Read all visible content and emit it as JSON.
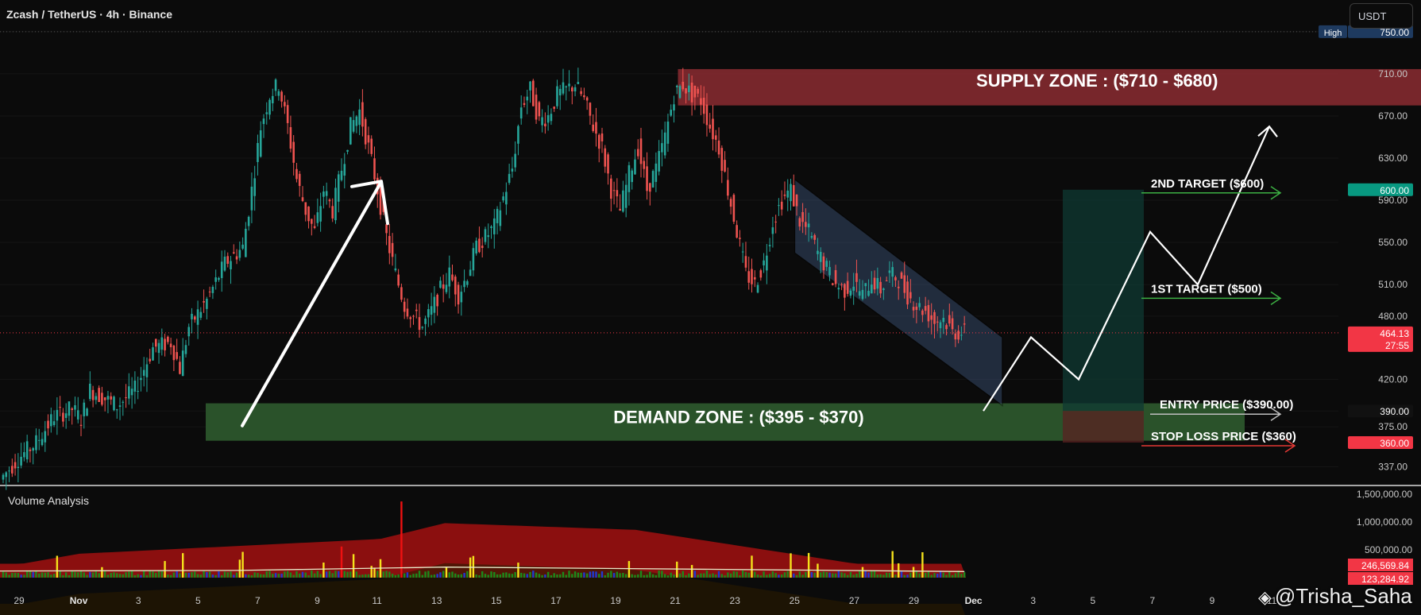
{
  "header": {
    "symbol_title": "Zcash / TetherUS · 4h · Binance",
    "currency_button": "USDT"
  },
  "volume_panel": {
    "label": "Volume Analysis",
    "axis_ticks": [
      "1,500,000.00",
      "1,000,000.00",
      "500,000.00"
    ],
    "badges": [
      "246,569.84",
      "123,284.92"
    ]
  },
  "watermark": {
    "text": "@Trisha_Saha",
    "icon": "binance-square-icon"
  },
  "colors": {
    "up": "#26a69a",
    "down": "#ef5350",
    "supply": "#8b2c31",
    "demand": "#2e5a2e",
    "target_green": "#3cb043",
    "stop_red": "#e53935",
    "price_badge_red": "#f23645",
    "target_badge": "#089981"
  },
  "chart_data": {
    "type": "candlestick",
    "title": "Zcash / TetherUS · 4h · Binance",
    "y_axis": {
      "ticks": [
        337,
        375,
        390,
        420,
        480,
        510,
        550,
        590,
        630,
        670,
        710,
        750
      ],
      "ylim": [
        320,
        765
      ]
    },
    "x_axis": {
      "tick_labels": [
        "29",
        "Nov",
        "3",
        "5",
        "7",
        "9",
        "11",
        "13",
        "15",
        "17",
        "19",
        "21",
        "23",
        "25",
        "27",
        "29",
        "Dec",
        "3",
        "5",
        "7",
        "9",
        "11"
      ]
    },
    "price_path": [
      [
        0,
        325
      ],
      [
        2,
        345
      ],
      [
        4,
        360
      ],
      [
        6,
        385
      ],
      [
        8,
        392
      ],
      [
        9,
        382
      ],
      [
        10,
        410
      ],
      [
        11,
        405
      ],
      [
        13,
        395
      ],
      [
        15,
        410
      ],
      [
        17,
        450
      ],
      [
        19,
        455
      ],
      [
        20,
        430
      ],
      [
        21,
        470
      ],
      [
        23,
        495
      ],
      [
        25,
        530
      ],
      [
        27,
        545
      ],
      [
        28,
        600
      ],
      [
        29,
        660
      ],
      [
        30,
        690
      ],
      [
        31,
        700
      ],
      [
        32,
        660
      ],
      [
        33,
        610
      ],
      [
        34,
        580
      ],
      [
        35,
        560
      ],
      [
        36,
        600
      ],
      [
        37,
        580
      ],
      [
        38,
        620
      ],
      [
        39,
        660
      ],
      [
        40,
        675
      ],
      [
        41,
        640
      ],
      [
        42,
        600
      ],
      [
        43,
        555
      ],
      [
        44,
        520
      ],
      [
        45,
        490
      ],
      [
        46,
        480
      ],
      [
        47,
        470
      ],
      [
        48,
        485
      ],
      [
        49,
        505
      ],
      [
        50,
        520
      ],
      [
        51,
        500
      ],
      [
        52,
        520
      ],
      [
        53,
        545
      ],
      [
        55,
        565
      ],
      [
        57,
        620
      ],
      [
        58,
        680
      ],
      [
        59,
        695
      ],
      [
        60,
        665
      ],
      [
        61,
        670
      ],
      [
        62,
        690
      ],
      [
        63,
        695
      ],
      [
        64,
        700
      ],
      [
        65,
        685
      ],
      [
        66,
        660
      ],
      [
        67,
        640
      ],
      [
        68,
        600
      ],
      [
        69,
        580
      ],
      [
        70,
        615
      ],
      [
        71,
        640
      ],
      [
        72,
        600
      ],
      [
        73,
        620
      ],
      [
        74,
        650
      ],
      [
        75,
        690
      ],
      [
        76,
        700
      ],
      [
        77,
        690
      ],
      [
        78,
        685
      ],
      [
        79,
        660
      ],
      [
        80,
        640
      ],
      [
        81,
        600
      ],
      [
        82,
        560
      ],
      [
        83,
        520
      ],
      [
        84,
        510
      ],
      [
        85,
        530
      ],
      [
        86,
        570
      ],
      [
        87,
        590
      ],
      [
        88,
        600
      ],
      [
        89,
        570
      ],
      [
        90,
        560
      ],
      [
        91,
        540
      ],
      [
        92,
        525
      ],
      [
        93,
        510
      ],
      [
        94,
        505
      ],
      [
        95,
        512
      ],
      [
        96,
        500
      ],
      [
        97,
        515
      ],
      [
        98,
        505
      ],
      [
        99,
        520
      ],
      [
        100,
        515
      ],
      [
        101,
        500
      ],
      [
        102,
        490
      ],
      [
        103,
        485
      ],
      [
        104,
        475
      ],
      [
        105,
        478
      ],
      [
        106,
        465
      ],
      [
        107,
        464.13
      ]
    ],
    "high_marker": {
      "label": "High",
      "value": 750.0
    },
    "current_price": {
      "value": "464.13",
      "countdown": "27:55"
    },
    "zones": [
      {
        "label": "SUPPLY ZONE : ($710 - $680)",
        "top": 710,
        "bottom": 680,
        "from_index": 75,
        "to_day": 6.0
      },
      {
        "label": "DEMAND ZONE : ($395 - $370)",
        "top": 395,
        "bottom": 370,
        "from_index": 23,
        "to_day": 6.0
      }
    ],
    "targets": [
      {
        "label": "2ND TARGET ($600)",
        "value": 600,
        "badge": "600.00",
        "kind": "target"
      },
      {
        "label": "1ST TARGET ($500)",
        "value": 500,
        "kind": "target"
      },
      {
        "label": "ENTRY PRICE ($390.00)",
        "value": 390,
        "badge": "390.00",
        "kind": "entry"
      },
      {
        "label": "STOP LOSS PRICE ($360)",
        "value": 360,
        "badge": "360.00",
        "kind": "stop"
      }
    ],
    "position": {
      "entry": 390,
      "target": 600,
      "stop": 360
    },
    "channel": {
      "upper": [
        [
          88,
          610
        ],
        [
          110,
          460
        ]
      ],
      "lower": [
        [
          88,
          540
        ],
        [
          110,
          395
        ]
      ]
    },
    "projection": [
      [
        0,
        390
      ],
      [
        1,
        460
      ],
      [
        2,
        420
      ],
      [
        3.5,
        560
      ],
      [
        4.5,
        510
      ],
      [
        6,
        660
      ]
    ],
    "volume": {
      "ylim": [
        0,
        1600000
      ],
      "band_max": 1050000
    }
  }
}
